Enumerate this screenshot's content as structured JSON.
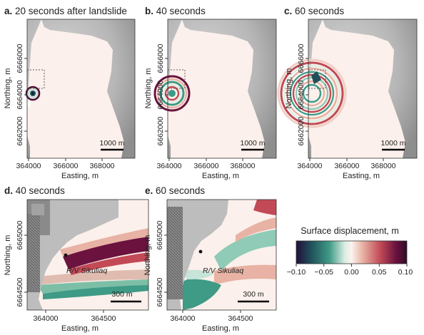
{
  "panels": {
    "a": {
      "letter": "a.",
      "title": "20 seconds after landslide"
    },
    "b": {
      "letter": "b.",
      "title": "40 seconds"
    },
    "c": {
      "letter": "c.",
      "title": "60 seconds"
    },
    "d": {
      "letter": "d.",
      "title": "40 seconds"
    },
    "e": {
      "letter": "e.",
      "title": "60 seconds"
    }
  },
  "top_axes": {
    "x_ticks": [
      "364000",
      "366000",
      "368000"
    ],
    "y_ticks": [
      "6666000",
      "6664000",
      "6662000"
    ],
    "xlabel": "Easting, m",
    "ylabel": "Northing, m",
    "scalebar": "1000 m"
  },
  "bottom_axes": {
    "x_ticks": [
      "364000",
      "364500"
    ],
    "y_ticks": [
      "6665000",
      "6664500"
    ],
    "xlabel": "Easting, m",
    "ylabel": "Northing, m",
    "scalebar": "300 m",
    "vessel_label": "R/V Sikuliaq"
  },
  "colorbar": {
    "title": "Surface displacement, m",
    "ticks": [
      "−0.10",
      "−0.05",
      "0.00",
      "0.05",
      "0.10"
    ],
    "min": -0.1,
    "max": 0.1,
    "colors": [
      "#22103a",
      "#1f4f5a",
      "#3f9a86",
      "#dbeee3",
      "#fbf3ee",
      "#e8b2a4",
      "#c24a56",
      "#6b123f",
      "#2e0b25"
    ]
  }
}
